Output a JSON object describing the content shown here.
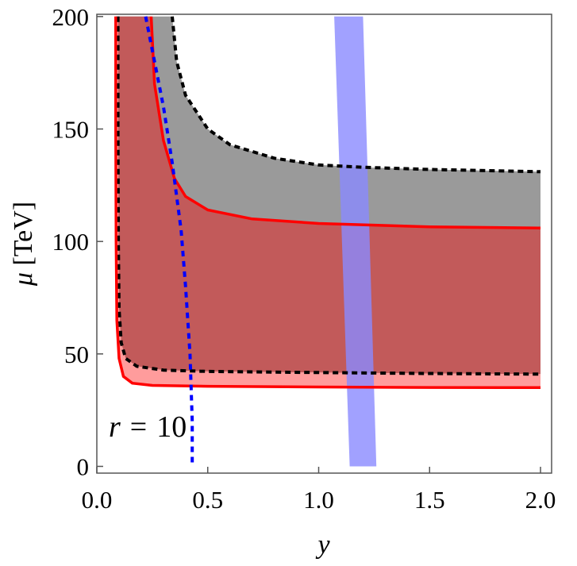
{
  "chart_data": {
    "type": "area",
    "xlabel": "y",
    "ylabel": "μ [TeV]",
    "xlim": [
      0,
      2.05
    ],
    "ylim": [
      -3,
      201
    ],
    "x_ticks": [
      "0.0",
      "0.5",
      "1.0",
      "1.5",
      "2.0"
    ],
    "x_tick_values": [
      0.0,
      0.5,
      1.0,
      1.5,
      2.0
    ],
    "y_ticks": [
      "0",
      "50",
      "100",
      "150",
      "200"
    ],
    "y_tick_values": [
      0,
      50,
      100,
      150,
      200
    ],
    "annotation": {
      "variable": "r",
      "operator": "=",
      "value": "10"
    },
    "colors": {
      "gray_band": "#9a9a9a",
      "red_band_dark": "#c25a5a",
      "red_band_light": "#ff9c9c",
      "red_line": "#ff0000",
      "black_dashed": "#000000",
      "blue_dashed": "#0000ff",
      "blue_band": "#8a8aff"
    },
    "series": [
      {
        "style": "black-dashed",
        "points": [
          [
            0.34,
            200
          ],
          [
            0.36,
            180
          ],
          [
            0.4,
            165
          ],
          [
            0.5,
            150
          ],
          [
            0.6,
            143
          ],
          [
            0.8,
            137
          ],
          [
            1.0,
            134
          ],
          [
            1.2,
            133
          ],
          [
            1.5,
            132
          ],
          [
            2.0,
            131
          ]
        ]
      },
      {
        "style": "red-solid",
        "points": [
          [
            0.245,
            200
          ],
          [
            0.26,
            170
          ],
          [
            0.3,
            145
          ],
          [
            0.35,
            128
          ],
          [
            0.4,
            120
          ],
          [
            0.5,
            114
          ],
          [
            0.7,
            110
          ],
          [
            1.0,
            108
          ],
          [
            1.5,
            106.5
          ],
          [
            2.0,
            106
          ]
        ]
      },
      {
        "style": "black-dashed",
        "points": [
          [
            0.095,
            200
          ],
          [
            0.095,
            150
          ],
          [
            0.097,
            100
          ],
          [
            0.1,
            70
          ],
          [
            0.11,
            55
          ],
          [
            0.13,
            48
          ],
          [
            0.18,
            44.5
          ],
          [
            0.3,
            42.8
          ],
          [
            0.5,
            42.2
          ],
          [
            1.0,
            41.7
          ],
          [
            1.5,
            41.3
          ],
          [
            2.0,
            41
          ]
        ]
      },
      {
        "style": "red-solid",
        "points": [
          [
            0.085,
            200
          ],
          [
            0.085,
            150
          ],
          [
            0.087,
            100
          ],
          [
            0.09,
            65
          ],
          [
            0.1,
            48
          ],
          [
            0.12,
            40
          ],
          [
            0.16,
            37
          ],
          [
            0.25,
            36
          ],
          [
            0.5,
            35.6
          ],
          [
            1.0,
            35.3
          ],
          [
            1.5,
            35.1
          ],
          [
            2.0,
            35
          ]
        ]
      },
      {
        "style": "blue-dashed",
        "points": [
          [
            0.22,
            200
          ],
          [
            0.26,
            180
          ],
          [
            0.3,
            160
          ],
          [
            0.34,
            135
          ],
          [
            0.38,
            105
          ],
          [
            0.4,
            80
          ],
          [
            0.42,
            50
          ],
          [
            0.43,
            20
          ],
          [
            0.43,
            0
          ]
        ]
      }
    ],
    "vertical_band": {
      "top": {
        "y": 200,
        "x_left": 1.07,
        "x_right": 1.2
      },
      "bottom": {
        "y": 0,
        "x_left": 1.14,
        "x_right": 1.26
      }
    }
  }
}
